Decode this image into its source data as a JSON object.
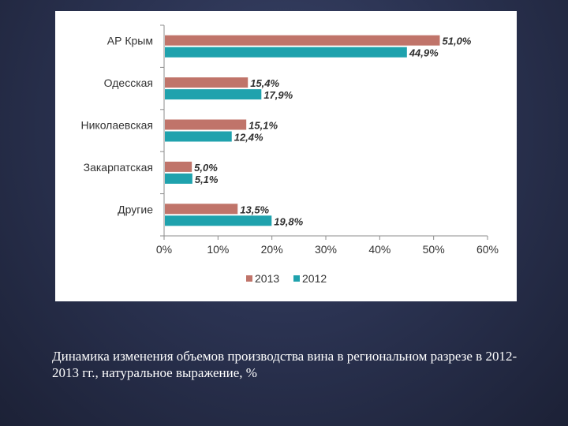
{
  "chart_data": {
    "type": "bar",
    "orientation": "horizontal",
    "categories": [
      "АР Крым",
      "Одесская",
      "Николаевская",
      "Закарпатская",
      "Другие"
    ],
    "series": [
      {
        "name": "2013",
        "color": "#c0746a",
        "values": [
          51.0,
          15.4,
          15.1,
          5.0,
          13.5
        ],
        "labels": [
          "51,0%",
          "15,4%",
          "15,1%",
          "5,0%",
          "13,5%"
        ]
      },
      {
        "name": "2012",
        "color": "#1fa2ad",
        "values": [
          44.9,
          17.9,
          12.4,
          5.1,
          19.8
        ],
        "labels": [
          "44,9%",
          "17,9%",
          "12,4%",
          "5,1%",
          "19,8%"
        ]
      }
    ],
    "xlim": [
      0,
      60
    ],
    "xticks": [
      "0%",
      "10%",
      "20%",
      "30%",
      "40%",
      "50%",
      "60%"
    ],
    "grid": false,
    "legend_position": "bottom"
  },
  "caption": "Динамика изменения объемов производства вина в региональном разрезе в 2012-2013 гг., натуральное выражение, %"
}
